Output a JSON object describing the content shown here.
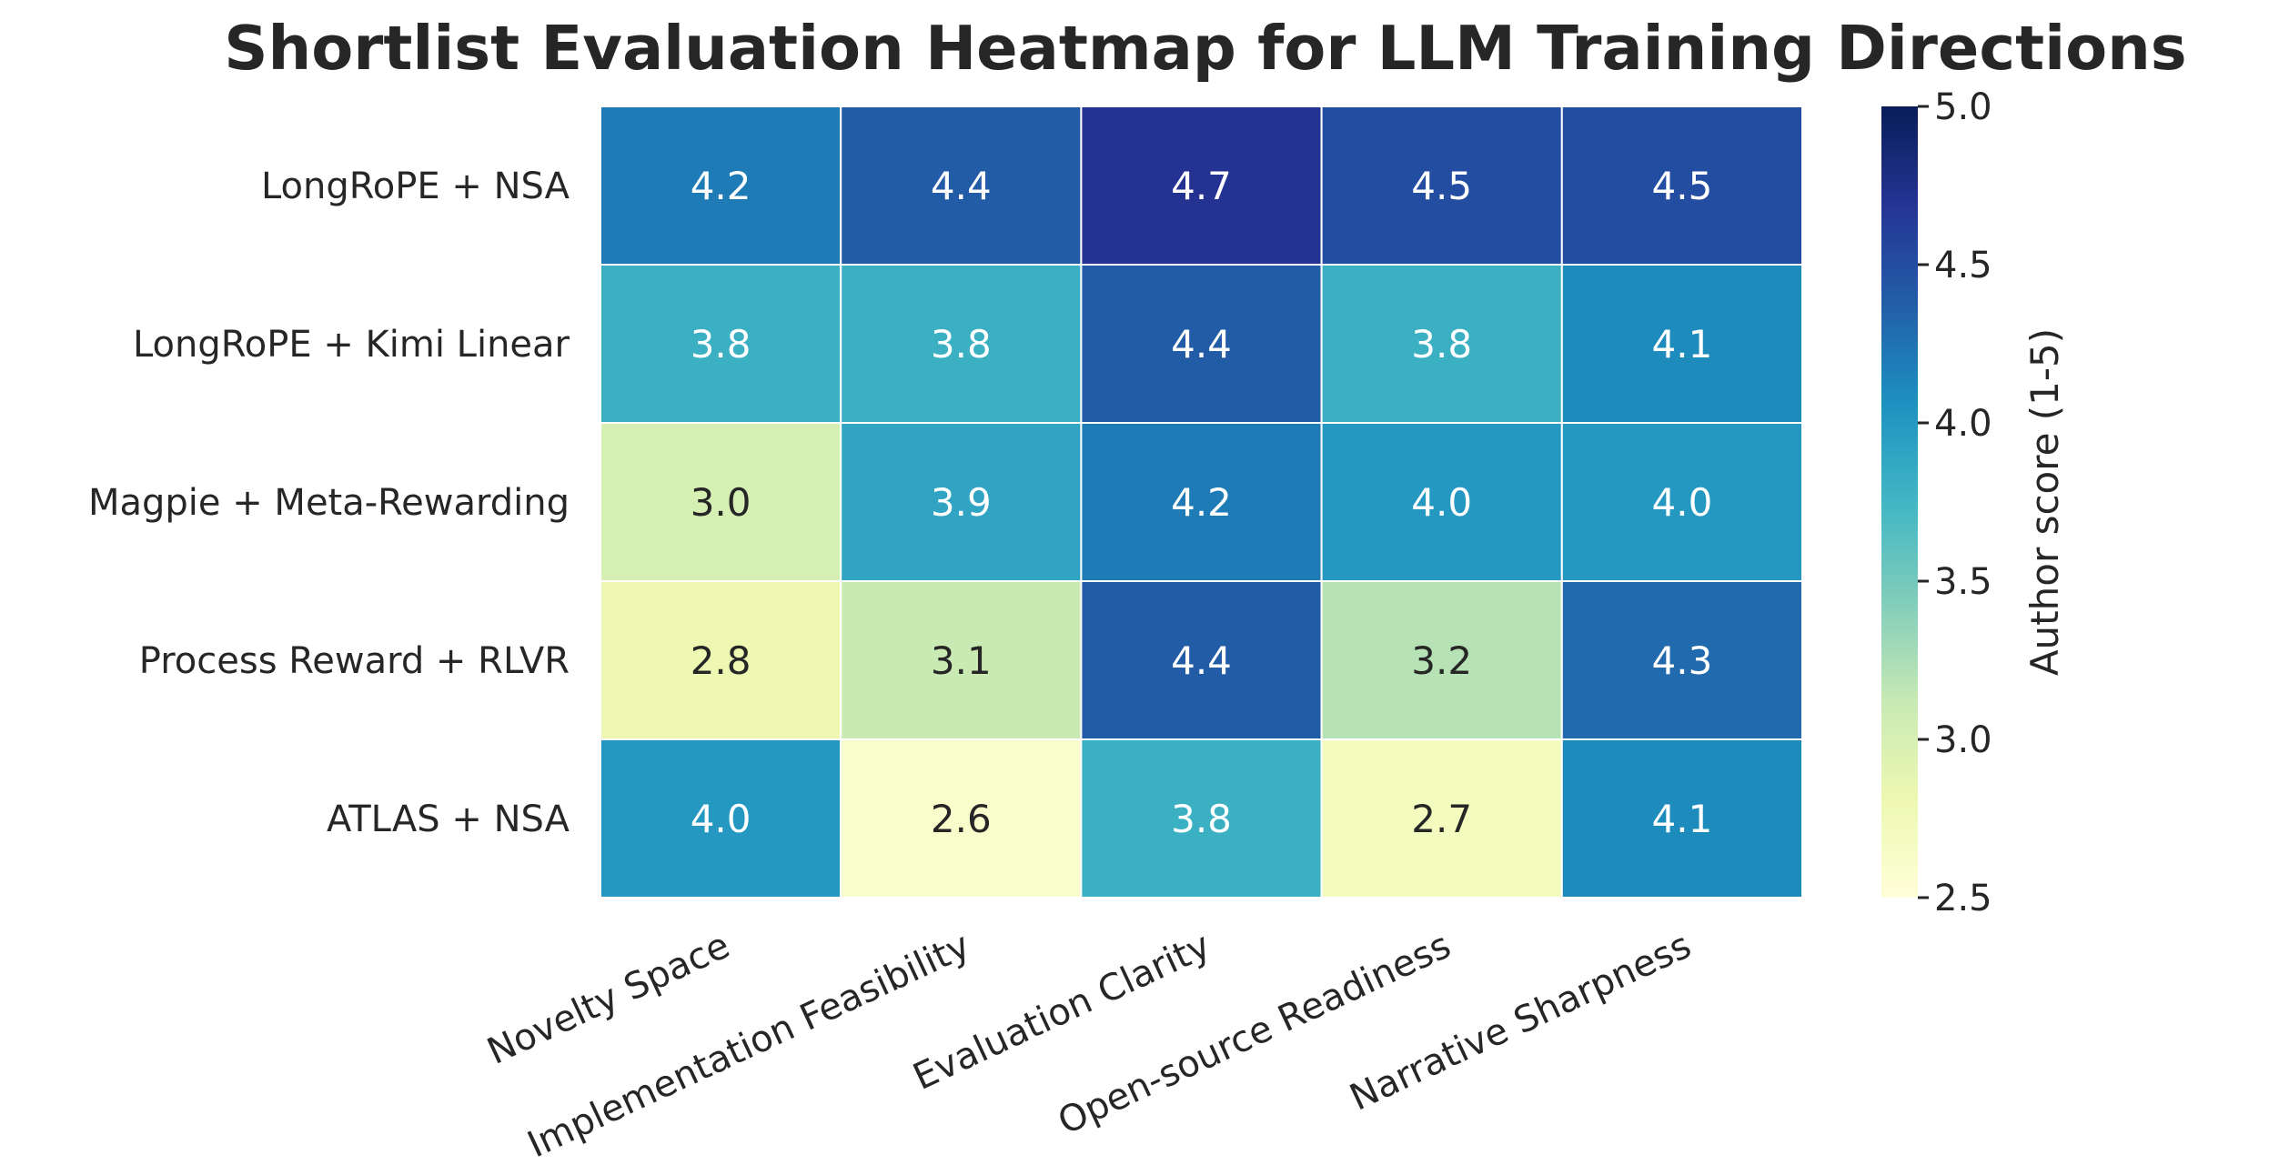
{
  "chart_data": {
    "type": "heatmap",
    "title": "Shortlist Evaluation Heatmap for LLM Training Directions",
    "rows": [
      "LongRoPE + NSA",
      "LongRoPE + Kimi Linear",
      "Magpie + Meta-Rewarding",
      "Process Reward + RLVR",
      "ATLAS + NSA"
    ],
    "columns": [
      "Novelty Space",
      "Implementation Feasibility",
      "Evaluation Clarity",
      "Open-source Readiness",
      "Narrative Sharpness"
    ],
    "values": [
      [
        4.2,
        4.4,
        4.7,
        4.5,
        4.5
      ],
      [
        3.8,
        3.8,
        4.4,
        3.8,
        4.1
      ],
      [
        3.0,
        3.9,
        4.2,
        4.0,
        4.0
      ],
      [
        2.8,
        3.1,
        4.4,
        3.2,
        4.3
      ],
      [
        4.0,
        2.6,
        3.8,
        2.7,
        4.1
      ]
    ],
    "colormap": "YlGnBu",
    "vmin": 2.5,
    "vmax": 5.0,
    "colorbar": {
      "label": "Author score (1-5)",
      "ticks": [
        "2.5",
        "3.0",
        "3.5",
        "4.0",
        "4.5",
        "5.0"
      ]
    },
    "annotation_colors": {
      "dark": "#262626",
      "light": "#ffffff"
    }
  }
}
